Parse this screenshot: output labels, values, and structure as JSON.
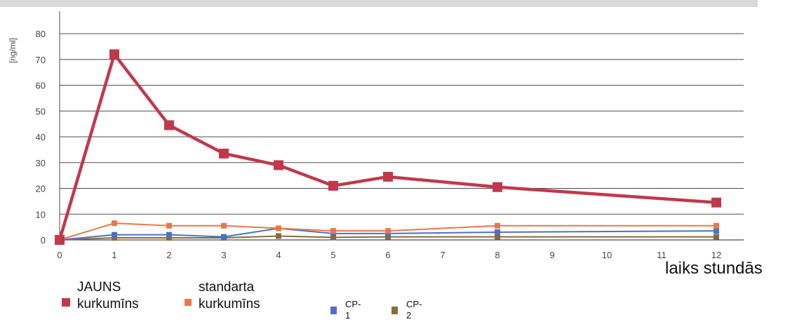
{
  "chart_data": {
    "type": "line",
    "ylabel": "[ng/ml]",
    "xlabel": "laiks stundās",
    "xlim": [
      0,
      12.5
    ],
    "ylim": [
      0,
      80
    ],
    "xticks": [
      0,
      1,
      2,
      3,
      4,
      5,
      6,
      7,
      8,
      9,
      10,
      11,
      12
    ],
    "yticks": [
      0,
      10,
      20,
      30,
      40,
      50,
      60,
      70,
      80
    ],
    "grid": "horizontal",
    "legend_position": "bottom",
    "series": [
      {
        "name_lines": [
          "JAUNS",
          "kurkumīns"
        ],
        "color": "#c0394b",
        "x": [
          0,
          1,
          2,
          3,
          4,
          5,
          6,
          8,
          12
        ],
        "y": [
          0,
          72,
          44.5,
          33.5,
          29,
          21,
          24.5,
          20.5,
          14.5
        ]
      },
      {
        "name_lines": [
          "standarta",
          "kurkumīns"
        ],
        "color": "#e8784a",
        "x": [
          0,
          1,
          2,
          3,
          4,
          5,
          6,
          8,
          12
        ],
        "y": [
          0,
          6.5,
          5.5,
          5.5,
          4.5,
          3.5,
          3.5,
          5.5,
          5.5
        ]
      },
      {
        "name_lines": [
          "CP-1"
        ],
        "color": "#4a72c4",
        "x": [
          0,
          1,
          2,
          3,
          4,
          5,
          6,
          8,
          12
        ],
        "y": [
          0,
          2,
          2,
          1.2,
          4.5,
          2.5,
          2.5,
          3,
          3.5
        ]
      },
      {
        "name_lines": [
          "CP-2"
        ],
        "color": "#8a6a3c",
        "x": [
          0,
          1,
          2,
          3,
          4,
          5,
          6,
          8,
          12
        ],
        "y": [
          0,
          0.8,
          0.8,
          0.8,
          1.5,
          1,
          1.2,
          1.2,
          1.2
        ]
      }
    ]
  }
}
